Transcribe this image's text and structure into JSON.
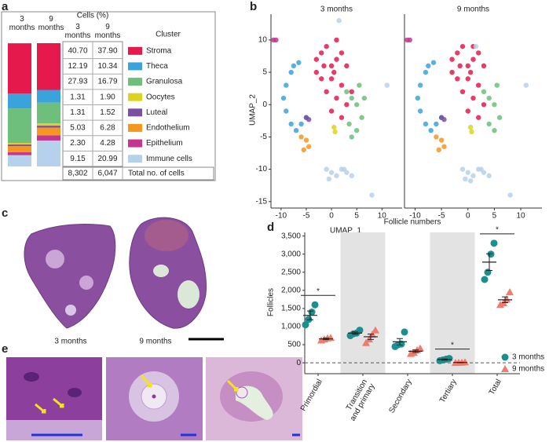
{
  "panel_labels": [
    "a",
    "b",
    "c",
    "d",
    "e"
  ],
  "table": {
    "header": "Cells (%)",
    "cluster_header": "Cluster",
    "total_label": "Total no. of cells",
    "totals": [
      "8,302",
      "6,047"
    ]
  },
  "images": {
    "labels": [
      "3 months",
      "9 months"
    ]
  },
  "chart_data": [
    {
      "type": "stackedbar",
      "categories": [
        "3 months",
        "9 months"
      ],
      "ylim": [
        0,
        100
      ],
      "series": [
        {
          "name": "Stroma",
          "color": "#e5194c",
          "values": [
            40.7,
            37.9
          ],
          "value_labels": [
            "40.70",
            "37.90"
          ]
        },
        {
          "name": "Theca",
          "color": "#3ba3dc",
          "values": [
            12.19,
            10.34
          ],
          "value_labels": [
            "12.19",
            "10.34"
          ]
        },
        {
          "name": "Granulosa",
          "color": "#6dbf7b",
          "values": [
            27.93,
            16.79
          ],
          "value_labels": [
            "27.93",
            "16.79"
          ]
        },
        {
          "name": "Oocytes",
          "color": "#dcd31e",
          "values": [
            1.31,
            1.9
          ],
          "value_labels": [
            "1.31",
            "1.90"
          ]
        },
        {
          "name": "Luteal",
          "color": "#7b4fa1",
          "values": [
            1.31,
            1.52
          ],
          "value_labels": [
            "1.31",
            "1.52"
          ]
        },
        {
          "name": "Endothelium",
          "color": "#f5961e",
          "values": [
            5.03,
            6.28
          ],
          "value_labels": [
            "5.03",
            "6.28"
          ]
        },
        {
          "name": "Epithelium",
          "color": "#c4368f",
          "values": [
            2.3,
            4.28
          ],
          "value_labels": [
            "2.30",
            "4.28"
          ]
        },
        {
          "name": "Immune cells",
          "color": "#b6d1ec",
          "values": [
            9.15,
            20.99
          ],
          "value_labels": [
            "9.15",
            "20.99"
          ]
        }
      ]
    },
    {
      "type": "scatter",
      "title": "3 months",
      "xlabel": "UMAP_1",
      "ylabel": "UMAP_2",
      "xlim": [
        -12,
        14
      ],
      "ylim": [
        -16,
        14
      ],
      "xticks": [
        -10,
        -5,
        0,
        5,
        10
      ],
      "yticks": [
        -15,
        -10,
        -5,
        0,
        5,
        10
      ],
      "series": [
        {
          "color": "#e5194c",
          "x": [
            -3,
            -2,
            -1,
            0,
            1,
            2,
            3,
            -2,
            0,
            2,
            -1,
            1,
            3,
            0,
            2,
            -3,
            1,
            4,
            -1.5,
            0.5
          ],
          "y": [
            7,
            8,
            9,
            6,
            7,
            8,
            6,
            4,
            4,
            3,
            2,
            1,
            0,
            -1,
            -2,
            5,
            10,
            2,
            6,
            5
          ]
        },
        {
          "color": "#3ba3dc",
          "x": [
            -8,
            -9,
            -9.5,
            -9,
            -8,
            -7,
            -6,
            -5,
            -7.5,
            -6.5
          ],
          "y": [
            5,
            3,
            1,
            -1,
            -3,
            -4,
            -3,
            -2,
            6,
            6.5
          ]
        },
        {
          "color": "#6dbf7b",
          "x": [
            3,
            4,
            5,
            6,
            5,
            4,
            3.5,
            6.5,
            5.5
          ],
          "y": [
            2,
            1,
            0,
            -2,
            -4,
            -5,
            -3,
            1,
            3
          ]
        },
        {
          "color": "#dcd31e",
          "x": [
            0.5,
            0.7
          ],
          "y": [
            -3.5,
            -4.2
          ]
        },
        {
          "color": "#7b4fa1",
          "x": [
            -5,
            -4.5
          ],
          "y": [
            -2,
            -2.3
          ]
        },
        {
          "color": "#f5961e",
          "x": [
            -6,
            -5,
            -4.5,
            -5.5
          ],
          "y": [
            -5,
            -5.5,
            -6.5,
            -7
          ]
        },
        {
          "color": "#c4368f",
          "x": [
            -11.5,
            -11
          ],
          "y": [
            10,
            10
          ]
        },
        {
          "color": "#b6d1ec",
          "x": [
            -1,
            0,
            1,
            2,
            3,
            4,
            -0.5,
            8,
            11,
            1.5,
            2.5
          ],
          "y": [
            -10,
            -10.5,
            -11,
            -10,
            -10.5,
            -11,
            -11.5,
            -14,
            3,
            13,
            -10
          ]
        }
      ]
    },
    {
      "type": "scatter",
      "title": "9 months",
      "xlim": [
        -12,
        14
      ],
      "ylim": [
        -16,
        14
      ],
      "xticks": [
        -10,
        -5,
        0,
        5,
        10
      ],
      "series": [
        {
          "color": "#e5194c",
          "x": [
            -3,
            -2,
            -1,
            0,
            1,
            2,
            3,
            -2,
            0,
            2,
            -1,
            1,
            3,
            0,
            2,
            -3,
            1,
            -1.5,
            0.5
          ],
          "y": [
            7,
            8,
            9,
            6,
            7,
            8,
            6,
            4,
            4,
            3,
            2,
            1,
            0,
            -1,
            -2,
            5,
            9,
            6,
            5
          ]
        },
        {
          "color": "#3ba3dc",
          "x": [
            -8,
            -9,
            -9.5,
            -9,
            -8,
            -7,
            -6,
            -5,
            -7.5,
            -6.5
          ],
          "y": [
            5,
            3,
            1,
            -1,
            -3,
            -4,
            -3,
            -2,
            6,
            6.5
          ]
        },
        {
          "color": "#6dbf7b",
          "x": [
            3,
            4,
            5,
            6,
            5,
            4,
            5.5
          ],
          "y": [
            2,
            1,
            0,
            -2,
            -4,
            -3,
            3
          ]
        },
        {
          "color": "#dcd31e",
          "x": [
            0.5,
            0.7
          ],
          "y": [
            -3.5,
            -4.2
          ]
        },
        {
          "color": "#7b4fa1",
          "x": [
            -5,
            -4.5
          ],
          "y": [
            -2,
            -2.3
          ]
        },
        {
          "color": "#f5961e",
          "x": [
            -6,
            -5,
            -4.5,
            -5.5
          ],
          "y": [
            -5,
            -5.5,
            -6.5,
            -7
          ]
        },
        {
          "color": "#c4368f",
          "x": [
            -11.5,
            -11
          ],
          "y": [
            10,
            10
          ]
        },
        {
          "color": "#b6d1ec",
          "x": [
            -1,
            0,
            1,
            2,
            3,
            4,
            -0.5,
            8,
            11,
            1.5,
            2.5,
            0.5
          ],
          "y": [
            -10,
            -10.5,
            -11,
            -10,
            -10.5,
            -11,
            -11.5,
            -14,
            3,
            9,
            -10,
            -11.8
          ]
        }
      ]
    },
    {
      "type": "dot",
      "title": "Follicle numbers",
      "ylabel": "Follicles",
      "categories": [
        "Primordial",
        "Transition and primary",
        "Secondary",
        "Tertiary",
        "Total"
      ],
      "band_shading": [
        false,
        true,
        false,
        true,
        false
      ],
      "significance": [
        "*",
        null,
        null,
        "*",
        "*"
      ],
      "ylim": [
        -300,
        3600
      ],
      "yticks": [
        0,
        500,
        {
          "value": 1000,
          "label": "1,000"
        },
        {
          "value": 1500,
          "label": "1,500"
        },
        {
          "value": 2000,
          "label": "2,000"
        },
        {
          "value": 2500,
          "label": "2,500"
        },
        {
          "value": 3000,
          "label": "3,000"
        },
        {
          "value": 3500,
          "label": "3,500"
        }
      ],
      "series": [
        {
          "name": "3 months",
          "color": "#1b8e8e",
          "marker": "circle",
          "values": [
            [
              1050,
              1200,
              1400,
              1600
            ],
            [
              750,
              800,
              820,
              900
            ],
            [
              450,
              500,
              520,
              850
            ],
            [
              60,
              80,
              100,
              120
            ],
            [
              2300,
              2500,
              3000,
              3300
            ]
          ],
          "means": [
            1310,
            820,
            580,
            90,
            2780
          ],
          "sem": [
            120,
            30,
            90,
            15,
            230
          ]
        },
        {
          "name": "9 months",
          "color": "#f07a6c",
          "marker": "triangle",
          "values": [
            [
              620,
              650,
              680,
              690
            ],
            [
              550,
              650,
              780,
              900
            ],
            [
              250,
              280,
              350,
              400
            ],
            [
              0,
              5,
              10,
              20
            ],
            [
              1600,
              1650,
              1750,
              1950
            ]
          ],
          "means": [
            660,
            720,
            320,
            10,
            1740
          ],
          "sem": [
            20,
            75,
            35,
            5,
            80
          ]
        }
      ]
    }
  ]
}
